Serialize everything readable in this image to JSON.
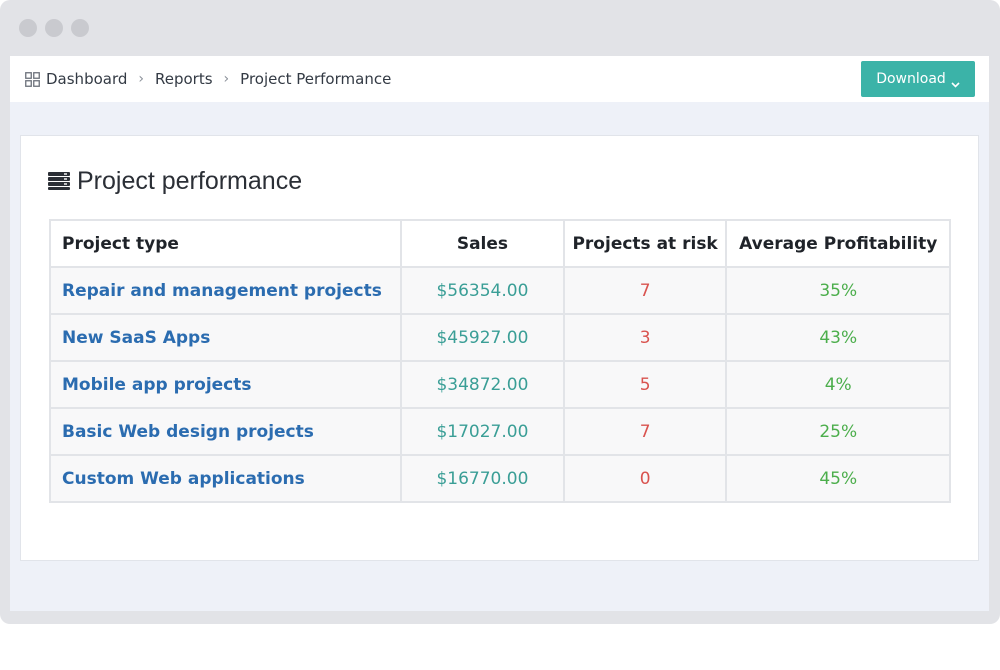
{
  "breadcrumb": {
    "icon": "grid-icon",
    "items": [
      {
        "label": "Dashboard"
      },
      {
        "label": "Reports"
      },
      {
        "label": "Project Performance"
      }
    ]
  },
  "toolbar": {
    "download_label": "Download",
    "download_icon": "chevron-down-icon",
    "accent_color": "#3bb3a8"
  },
  "panel": {
    "title": "Project performance",
    "icon": "server-stack-icon"
  },
  "table": {
    "columns": [
      "Project type",
      "Sales",
      "Projects at risk",
      "Average Profitability"
    ],
    "rows": [
      {
        "type": "Repair and management projects",
        "sales": "$56354.00",
        "risk": "7",
        "profitability": "35%"
      },
      {
        "type": "New SaaS Apps",
        "sales": "$45927.00",
        "risk": "3",
        "profitability": "43%"
      },
      {
        "type": "Mobile app projects",
        "sales": "$34872.00",
        "risk": "5",
        "profitability": "4%"
      },
      {
        "type": "Basic Web design projects",
        "sales": "$17027.00",
        "risk": "7",
        "profitability": "25%"
      },
      {
        "type": "Custom Web applications",
        "sales": "$16770.00",
        "risk": "0",
        "profitability": "45%"
      }
    ],
    "colors": {
      "link": "#2b6cb0",
      "sales": "#3a9e96",
      "risk": "#d9534f",
      "profit": "#4cae4c"
    }
  }
}
